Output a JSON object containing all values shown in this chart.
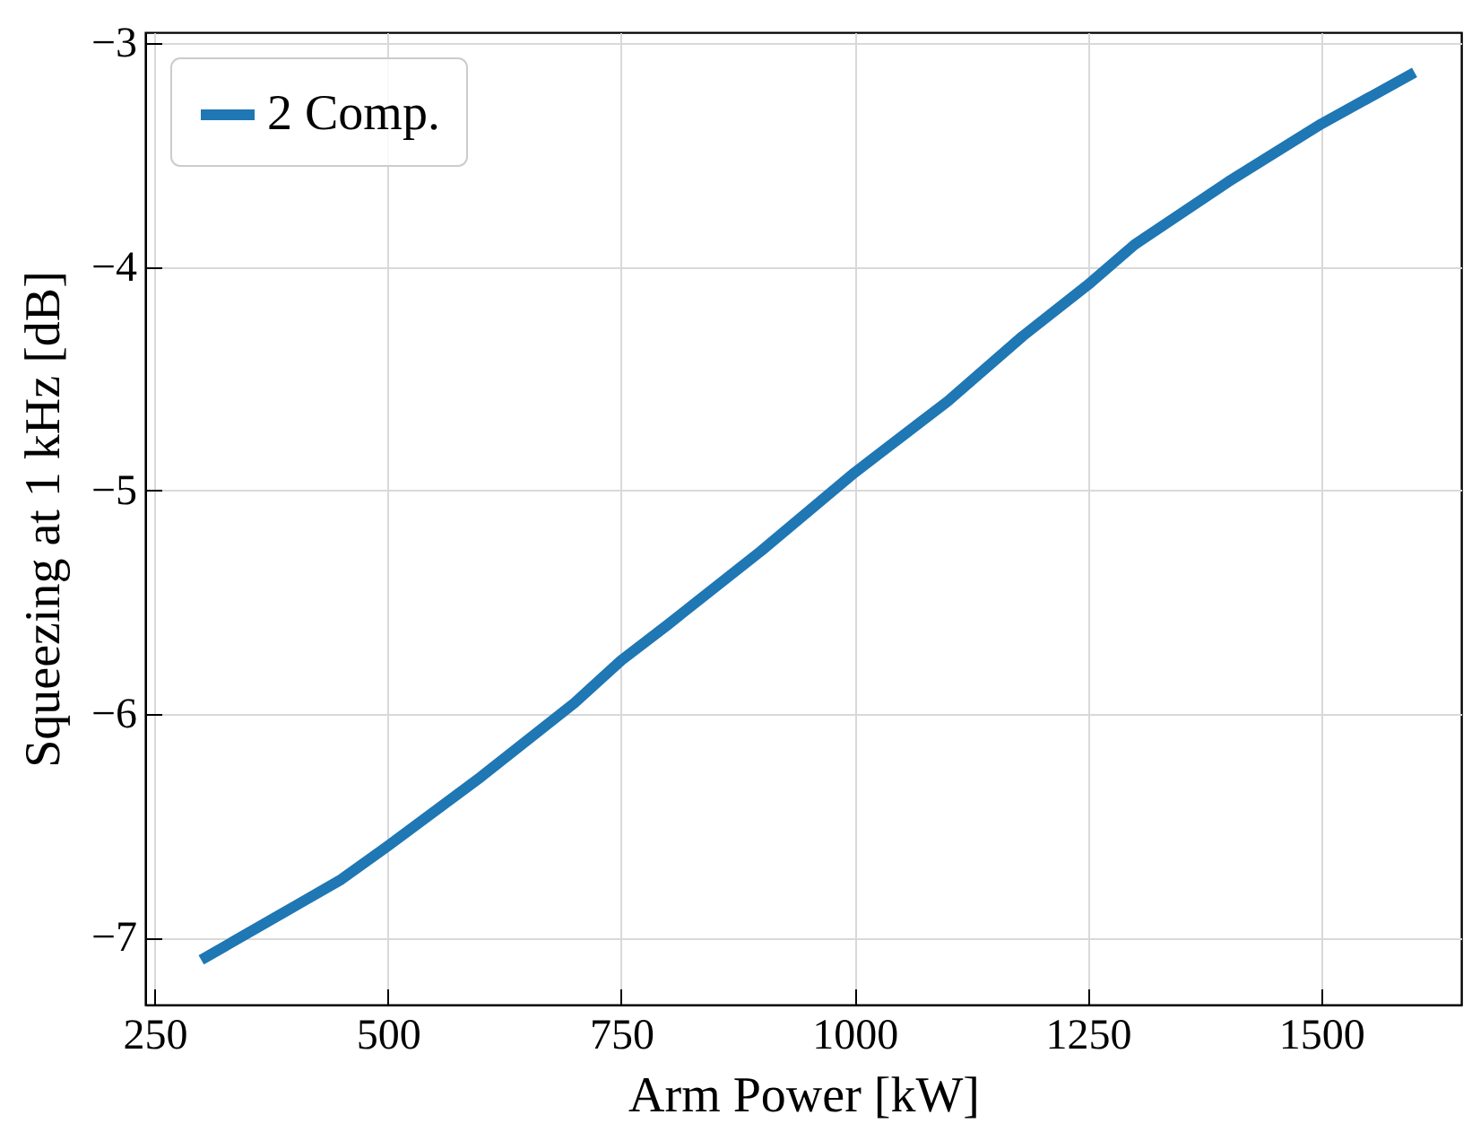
{
  "chart_data": {
    "type": "line",
    "xlabel": "Arm Power [kW]",
    "ylabel": "Squeezing at 1 kHz [dB]",
    "x": [
      300,
      400,
      450,
      500,
      600,
      700,
      750,
      800,
      900,
      1000,
      1100,
      1180,
      1250,
      1300,
      1400,
      1500,
      1600
    ],
    "series": [
      {
        "name": "2 Comp.",
        "color": "#1f77b4",
        "values": [
          -7.1,
          -6.86,
          -6.74,
          -6.59,
          -6.28,
          -5.95,
          -5.76,
          -5.6,
          -5.27,
          -4.92,
          -4.6,
          -4.31,
          -4.08,
          -3.9,
          -3.62,
          -3.36,
          -3.13
        ]
      }
    ],
    "xlim": [
      240,
      1650
    ],
    "ylim": [
      -7.3,
      -2.95
    ],
    "xticks": [
      250,
      500,
      750,
      1000,
      1250,
      1500
    ],
    "yticks": [
      -7,
      -6,
      -5,
      -4,
      -3
    ],
    "grid": true,
    "legend": "top left",
    "line_style": "solid",
    "marker": "none"
  }
}
